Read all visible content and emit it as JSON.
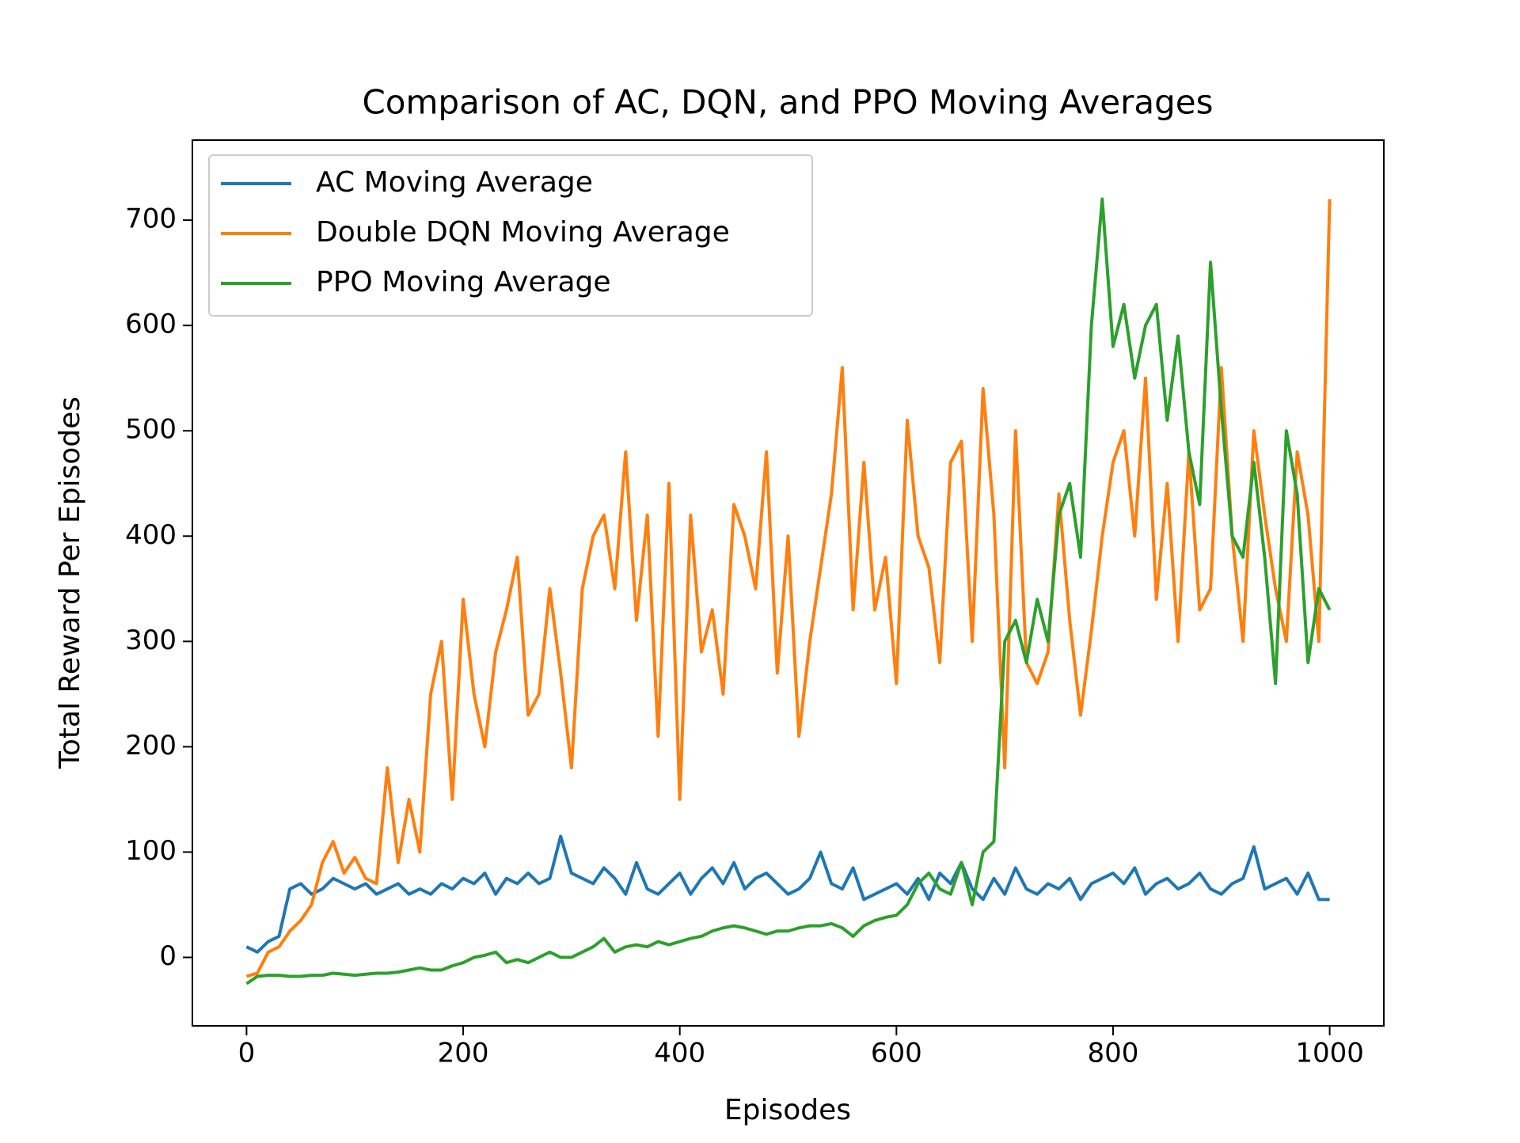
{
  "chart_data": {
    "type": "line",
    "title": "Comparison of AC, DQN, and PPO Moving Averages",
    "x_label": "Episodes",
    "y_label": "Total Reward Per Episodes",
    "x": [
      0,
      10,
      20,
      30,
      40,
      50,
      60,
      70,
      80,
      90,
      100,
      110,
      120,
      130,
      140,
      150,
      160,
      170,
      180,
      190,
      200,
      210,
      220,
      230,
      240,
      250,
      260,
      270,
      280,
      290,
      300,
      310,
      320,
      330,
      340,
      350,
      360,
      370,
      380,
      390,
      400,
      410,
      420,
      430,
      440,
      450,
      460,
      470,
      480,
      490,
      500,
      510,
      520,
      530,
      540,
      550,
      560,
      570,
      580,
      590,
      600,
      610,
      620,
      630,
      640,
      650,
      660,
      670,
      680,
      690,
      700,
      710,
      720,
      730,
      740,
      750,
      760,
      770,
      780,
      790,
      800,
      810,
      820,
      830,
      840,
      850,
      860,
      870,
      880,
      890,
      900,
      910,
      920,
      930,
      940,
      950,
      960,
      970,
      980,
      990,
      1000
    ],
    "series": [
      {
        "name": "AC Moving Average",
        "color": "#1f77b4",
        "values": [
          10,
          5,
          15,
          20,
          65,
          70,
          60,
          65,
          75,
          70,
          65,
          70,
          60,
          65,
          70,
          60,
          65,
          60,
          70,
          65,
          75,
          70,
          80,
          60,
          75,
          70,
          80,
          70,
          75,
          115,
          80,
          75,
          70,
          85,
          75,
          60,
          90,
          65,
          60,
          70,
          80,
          60,
          75,
          85,
          70,
          90,
          65,
          75,
          80,
          70,
          60,
          65,
          75,
          100,
          70,
          65,
          85,
          55,
          60,
          65,
          70,
          60,
          75,
          55,
          80,
          70,
          90,
          65,
          55,
          75,
          60,
          85,
          65,
          60,
          70,
          65,
          75,
          55,
          70,
          75,
          80,
          70,
          85,
          60,
          70,
          75,
          65,
          70,
          80,
          65,
          60,
          70,
          75,
          105,
          65,
          70,
          75,
          60,
          80,
          55,
          55
        ]
      },
      {
        "name": "Double DQN Moving Average",
        "color": "#ff7f0e",
        "values": [
          -18,
          -15,
          5,
          10,
          25,
          35,
          50,
          90,
          110,
          80,
          95,
          75,
          70,
          180,
          90,
          150,
          100,
          250,
          300,
          150,
          340,
          250,
          200,
          290,
          330,
          380,
          230,
          250,
          350,
          270,
          180,
          350,
          400,
          420,
          350,
          480,
          320,
          420,
          210,
          450,
          150,
          420,
          290,
          330,
          250,
          430,
          400,
          350,
          480,
          270,
          400,
          210,
          300,
          370,
          440,
          560,
          330,
          470,
          330,
          380,
          260,
          510,
          400,
          370,
          280,
          470,
          490,
          300,
          540,
          420,
          180,
          500,
          280,
          260,
          290,
          440,
          320,
          230,
          310,
          400,
          470,
          500,
          400,
          550,
          340,
          450,
          300,
          480,
          330,
          350,
          560,
          400,
          300,
          500,
          420,
          350,
          300,
          480,
          420,
          300,
          720
        ]
      },
      {
        "name": "PPO Moving Average",
        "color": "#2ca02c",
        "values": [
          -25,
          -18,
          -17,
          -17,
          -18,
          -18,
          -17,
          -17,
          -15,
          -16,
          -17,
          -16,
          -15,
          -15,
          -14,
          -12,
          -10,
          -12,
          -12,
          -8,
          -5,
          0,
          2,
          5,
          -5,
          -2,
          -5,
          0,
          5,
          0,
          0,
          5,
          10,
          18,
          5,
          10,
          12,
          10,
          15,
          12,
          15,
          18,
          20,
          25,
          28,
          30,
          28,
          25,
          22,
          25,
          25,
          28,
          30,
          30,
          32,
          28,
          20,
          30,
          35,
          38,
          40,
          50,
          70,
          80,
          65,
          60,
          90,
          50,
          100,
          110,
          300,
          320,
          280,
          340,
          300,
          420,
          450,
          380,
          600,
          720,
          580,
          620,
          550,
          600,
          620,
          510,
          590,
          480,
          430,
          660,
          520,
          400,
          380,
          470,
          380,
          260,
          500,
          440,
          280,
          350,
          330
        ]
      }
    ],
    "xlim": [
      -50,
      1050
    ],
    "ylim": [
      -65,
      776
    ],
    "xticks": [
      0,
      200,
      400,
      600,
      800,
      1000
    ],
    "yticks": [
      0,
      100,
      200,
      300,
      400,
      500,
      600,
      700
    ],
    "legend": "upper left"
  }
}
